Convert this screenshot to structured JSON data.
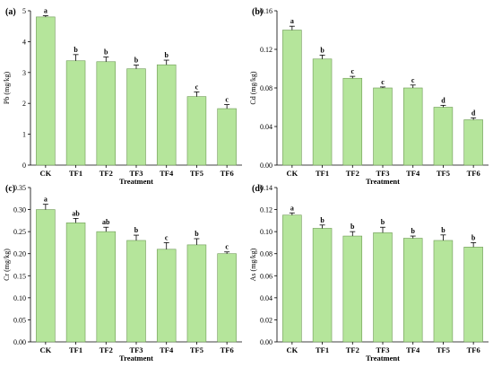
{
  "chart_data": [
    {
      "type": "bar",
      "panel_label": "(a)",
      "categories": [
        "CK",
        "TF1",
        "TF2",
        "TF3",
        "TF4",
        "TF5",
        "TF6"
      ],
      "values": [
        4.8,
        3.38,
        3.35,
        3.12,
        3.25,
        2.22,
        1.83
      ],
      "errors": [
        0.04,
        0.2,
        0.15,
        0.12,
        0.15,
        0.15,
        0.13
      ],
      "significance": [
        "a",
        "b",
        "b",
        "b",
        "b",
        "c",
        "c"
      ],
      "ylabel": "Pb (mg/kg)",
      "xlabel": "Treatment",
      "ylim": [
        0,
        5
      ],
      "yticks": [
        "0",
        "1",
        "2",
        "3",
        "4",
        "5"
      ],
      "grid": false,
      "bar_color": "#b5e59b"
    },
    {
      "type": "bar",
      "panel_label": "(b)",
      "categories": [
        "CK",
        "TF1",
        "TF2",
        "TF3",
        "TF4",
        "TF5",
        "TF6"
      ],
      "values": [
        0.14,
        0.11,
        0.09,
        0.08,
        0.08,
        0.06,
        0.047
      ],
      "errors": [
        0.004,
        0.004,
        0.002,
        0.001,
        0.003,
        0.002,
        0.002
      ],
      "significance": [
        "a",
        "b",
        "c",
        "c",
        "c",
        "d",
        "d"
      ],
      "ylabel": "Cd (mg/kg)",
      "xlabel": "Treatment",
      "ylim": [
        0,
        0.16
      ],
      "yticks": [
        "0.00",
        "0.04",
        "0.08",
        "0.12",
        "0.16"
      ],
      "grid": false,
      "bar_color": "#b5e59b"
    },
    {
      "type": "bar",
      "panel_label": "(c)",
      "categories": [
        "CK",
        "TF1",
        "TF2",
        "TF3",
        "TF4",
        "TF5",
        "TF6"
      ],
      "values": [
        0.3,
        0.27,
        0.25,
        0.23,
        0.21,
        0.22,
        0.2
      ],
      "errors": [
        0.012,
        0.01,
        0.01,
        0.012,
        0.015,
        0.014,
        0.004
      ],
      "significance": [
        "a",
        "ab",
        "ab",
        "b",
        "c",
        "b",
        "c"
      ],
      "ylabel": "Cr (mg/kg)",
      "xlabel": "Treatment",
      "ylim": [
        0,
        0.35
      ],
      "yticks": [
        "0.00",
        "0.05",
        "0.10",
        "0.15",
        "0.20",
        "0.25",
        "0.30",
        "0.35"
      ],
      "grid": false,
      "bar_color": "#b5e59b"
    },
    {
      "type": "bar",
      "panel_label": "(d)",
      "categories": [
        "CK",
        "TF1",
        "TF2",
        "TF3",
        "TF4",
        "TF5",
        "TF6"
      ],
      "values": [
        0.115,
        0.103,
        0.096,
        0.099,
        0.094,
        0.092,
        0.086
      ],
      "errors": [
        0.002,
        0.003,
        0.004,
        0.005,
        0.002,
        0.005,
        0.004
      ],
      "significance": [
        "a",
        "b",
        "b",
        "b",
        "b",
        "b",
        "b"
      ],
      "ylabel": "As (mg/kg)",
      "xlabel": "Treatment",
      "ylim": [
        0,
        0.14
      ],
      "yticks": [
        "0.00",
        "0.02",
        "0.04",
        "0.06",
        "0.08",
        "0.10",
        "0.12",
        "0.14"
      ],
      "grid": false,
      "bar_color": "#b5e59b"
    }
  ]
}
